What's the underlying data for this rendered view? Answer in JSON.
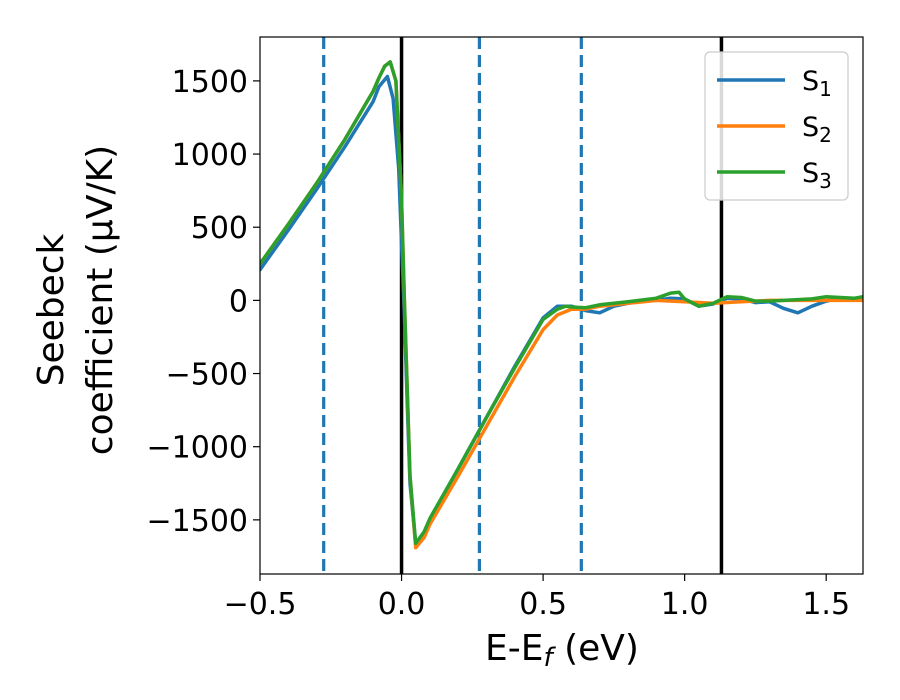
{
  "chart_data": {
    "type": "line",
    "title": "",
    "xlabel": "E-E",
    "xlabel_sub": "f",
    "xlabel_unit": " (eV)",
    "ylabel_line1": "Seebeck",
    "ylabel_line2": "coefficient  (μV/K)",
    "xlim": [
      -0.5,
      1.63
    ],
    "ylim": [
      -1870,
      1800
    ],
    "x_ticks": [
      -0.5,
      0.0,
      0.5,
      1.0,
      1.5
    ],
    "x_tick_labels": [
      "−0.5",
      "0.0",
      "0.5",
      "1.0",
      "1.5"
    ],
    "y_ticks": [
      -1500,
      -1000,
      -500,
      0,
      500,
      1000,
      1500
    ],
    "y_tick_labels": [
      "−1500",
      "−1000",
      "−500",
      "0",
      "500",
      "1000",
      "1500"
    ],
    "grid": false,
    "legend_placement": "top-right",
    "vlines": [
      {
        "x": 0.0,
        "style": "solid",
        "color": "#000000"
      },
      {
        "x": 1.13,
        "style": "solid",
        "color": "#000000"
      },
      {
        "x": -0.275,
        "style": "dashed",
        "color": "#1f77b4"
      },
      {
        "x": 0.275,
        "style": "dashed",
        "color": "#1f77b4"
      },
      {
        "x": 0.635,
        "style": "dashed",
        "color": "#1f77b4"
      }
    ],
    "series": [
      {
        "name": "S",
        "sub": "1",
        "color": "#1f77b4",
        "x": [
          -0.5,
          -0.4,
          -0.3,
          -0.2,
          -0.1,
          -0.08,
          -0.05,
          -0.03,
          -0.01,
          0.0,
          0.01,
          0.02,
          0.03,
          0.05,
          0.08,
          0.1,
          0.2,
          0.3,
          0.4,
          0.5,
          0.55,
          0.6,
          0.65,
          0.7,
          0.75,
          0.8,
          0.85,
          0.9,
          0.95,
          1.0,
          1.05,
          1.1,
          1.15,
          1.2,
          1.25,
          1.3,
          1.35,
          1.4,
          1.45,
          1.5,
          1.55,
          1.6,
          1.63
        ],
        "y": [
          210,
          480,
          760,
          1050,
          1360,
          1460,
          1530,
          1380,
          900,
          400,
          -100,
          -700,
          -1250,
          -1670,
          -1600,
          -1500,
          -1150,
          -800,
          -450,
          -120,
          -40,
          -40,
          -70,
          -85,
          -40,
          -20,
          -5,
          0,
          15,
          10,
          -40,
          -25,
          15,
          10,
          -15,
          -10,
          -55,
          -85,
          -40,
          -5,
          15,
          5,
          10
        ]
      },
      {
        "name": "S",
        "sub": "2",
        "color": "#ff7f0e",
        "x": [
          -0.5,
          -0.4,
          -0.3,
          -0.2,
          -0.1,
          -0.08,
          -0.06,
          -0.04,
          -0.02,
          0.0,
          0.01,
          0.02,
          0.03,
          0.05,
          0.08,
          0.1,
          0.2,
          0.3,
          0.4,
          0.5,
          0.55,
          0.6,
          0.65,
          0.7,
          0.8,
          0.9,
          1.0,
          1.1,
          1.2,
          1.3,
          1.4,
          1.5,
          1.63
        ],
        "y": [
          250,
          520,
          800,
          1100,
          1430,
          1520,
          1600,
          1630,
          1500,
          700,
          0,
          -600,
          -1200,
          -1690,
          -1620,
          -1530,
          -1200,
          -860,
          -520,
          -200,
          -100,
          -60,
          -60,
          -40,
          -20,
          0,
          -10,
          -20,
          -10,
          0,
          0,
          0,
          0
        ]
      },
      {
        "name": "S",
        "sub": "3",
        "color": "#2ca02c",
        "x": [
          -0.5,
          -0.4,
          -0.3,
          -0.2,
          -0.1,
          -0.08,
          -0.06,
          -0.04,
          -0.02,
          0.0,
          0.01,
          0.02,
          0.03,
          0.05,
          0.08,
          0.1,
          0.2,
          0.3,
          0.4,
          0.5,
          0.55,
          0.58,
          0.6,
          0.65,
          0.7,
          0.8,
          0.9,
          0.95,
          0.98,
          1.0,
          1.05,
          1.1,
          1.15,
          1.2,
          1.25,
          1.3,
          1.4,
          1.45,
          1.5,
          1.55,
          1.6,
          1.63
        ],
        "y": [
          250,
          520,
          800,
          1100,
          1430,
          1520,
          1600,
          1630,
          1500,
          700,
          0,
          -600,
          -1200,
          -1660,
          -1580,
          -1490,
          -1150,
          -800,
          -460,
          -130,
          -60,
          -40,
          -45,
          -50,
          -30,
          -10,
          15,
          50,
          55,
          10,
          -40,
          -20,
          25,
          20,
          -5,
          -5,
          5,
          10,
          25,
          20,
          15,
          25
        ]
      }
    ]
  }
}
